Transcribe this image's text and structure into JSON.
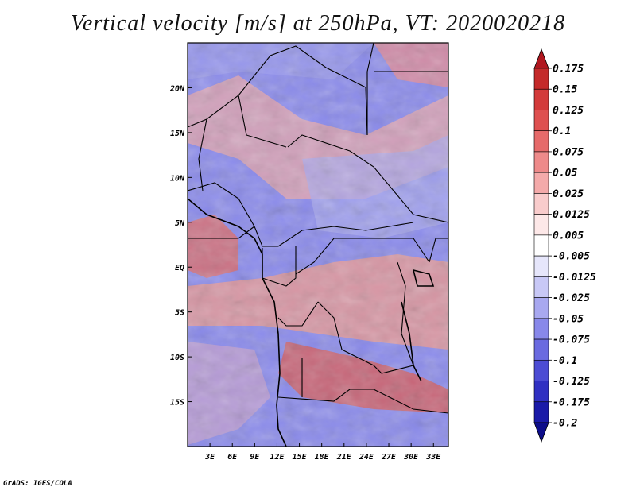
{
  "chart_data": {
    "type": "heatmap",
    "title": "Vertical velocity [m/s] at 250hPa, VT: 2020020218",
    "variable": "Vertical velocity",
    "units": "m/s",
    "level": "250hPa",
    "valid_time": "2020020218",
    "x_axis": {
      "range_deg": [
        0,
        35
      ],
      "ticks": [
        3,
        6,
        9,
        12,
        15,
        18,
        21,
        24,
        27,
        30,
        33
      ],
      "tick_labels": [
        "3E",
        "6E",
        "9E",
        "12E",
        "15E",
        "18E",
        "21E",
        "24E",
        "27E",
        "30E",
        "33E"
      ]
    },
    "y_axis": {
      "range_deg": [
        -20,
        25
      ],
      "ticks": [
        20,
        15,
        10,
        5,
        0,
        -5,
        -10,
        -15
      ],
      "tick_labels": [
        "20N",
        "15N",
        "10N",
        "5N",
        "EQ",
        "5S",
        "10S",
        "15S"
      ]
    },
    "colorbar": {
      "levels": [
        0.175,
        0.15,
        0.125,
        0.1,
        0.075,
        0.05,
        0.025,
        0.0125,
        0.005,
        -0.005,
        -0.0125,
        -0.025,
        -0.05,
        -0.075,
        -0.1,
        -0.125,
        -0.175,
        -0.2
      ],
      "labels": [
        "0.175",
        "0.15",
        "0.125",
        "0.1",
        "0.075",
        "0.05",
        "0.025",
        "0.0125",
        "0.005",
        "-0.005",
        "-0.0125",
        "-0.025",
        "-0.05",
        "-0.075",
        "-0.1",
        "-0.125",
        "-0.175",
        "-0.2"
      ],
      "colors": [
        "#b0171f",
        "#c42a2a",
        "#d33a3a",
        "#de5050",
        "#e66a6a",
        "#ee8a8a",
        "#f4aaaa",
        "#f9cccc",
        "#fde8e8",
        "#ffffff",
        "#e6e6fb",
        "#c8c8f6",
        "#a8a8f0",
        "#8888ea",
        "#6a6ae0",
        "#4c4cd4",
        "#3030c2",
        "#1a1aa8",
        "#0d0d8a"
      ]
    }
  },
  "footer": "GrADS: IGES/COLA"
}
